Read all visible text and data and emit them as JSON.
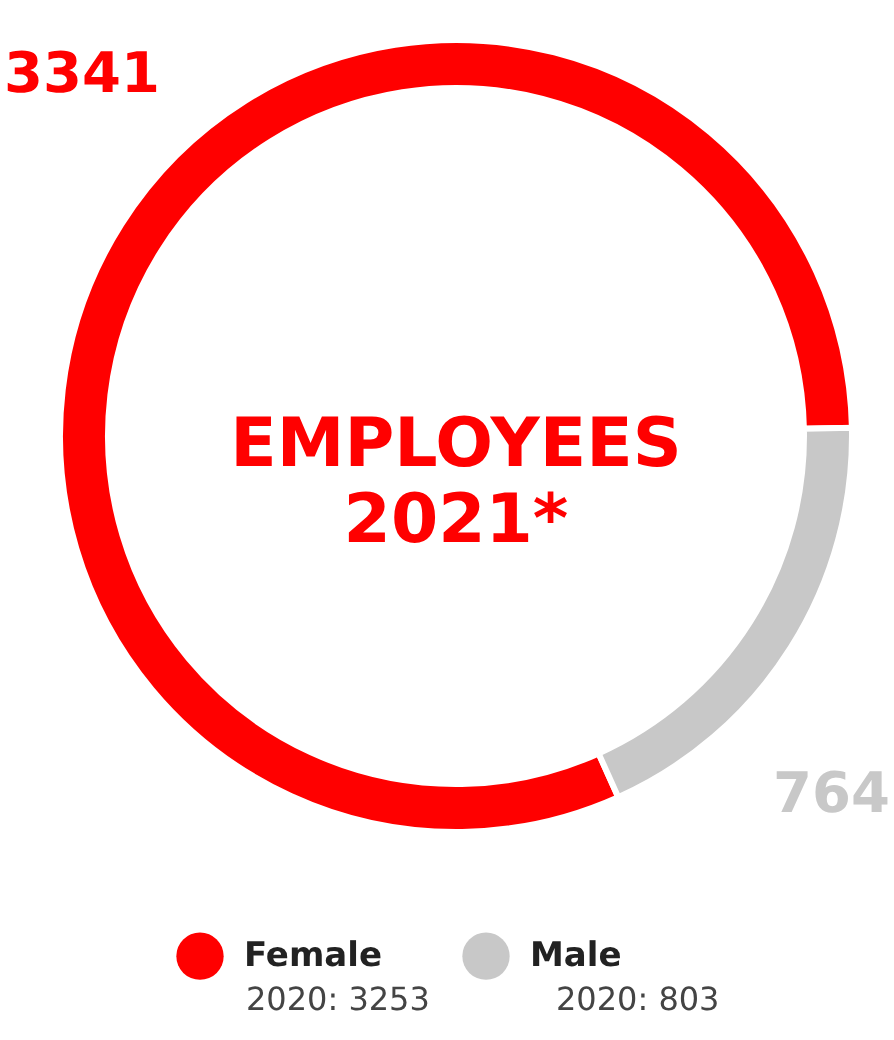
{
  "chart_data": {
    "type": "donut",
    "title": "EMPLOYEES 2021*",
    "categories": [
      "Female",
      "Male"
    ],
    "values": [
      3341,
      764
    ],
    "colors": [
      "#ff0000",
      "#c8c8c8"
    ],
    "data_labels": true,
    "legend": "bottom",
    "annotations": [
      "2020: 3253",
      "2020: 803"
    ]
  }
}
